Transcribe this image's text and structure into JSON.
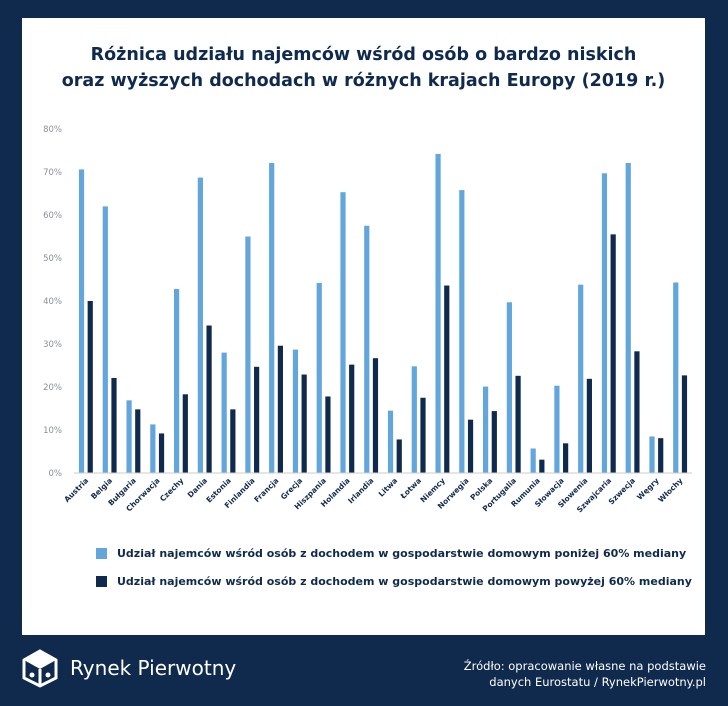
{
  "colors": {
    "background": "#0f2a4d",
    "series_light": "#62a6dc",
    "series_dark": "#0f2a4d",
    "axis_text": "#8a8f99"
  },
  "footer": {
    "brand": "Rynek Pierwotny",
    "logo_icon": "cube-logo-icon",
    "source_line1": "Źródło: opracowanie własne na podstawie",
    "source_line2": "danych Eurostatu / RynekPierwotny.pl"
  },
  "chart_data": {
    "type": "bar",
    "title": [
      "Różnica udziału najemców wśród osób o bardzo niskich",
      "oraz wyższych dochodach w różnych krajach Europy (2019 r.)"
    ],
    "xlabel": "",
    "ylabel": "",
    "ylim": [
      0,
      80
    ],
    "yticks": [
      "0%",
      "10%",
      "20%",
      "30%",
      "40%",
      "50%",
      "60%",
      "70%",
      "80%"
    ],
    "grid": false,
    "legend_position": "bottom",
    "categories": [
      "Austria",
      "Belgia",
      "Bułgaria",
      "Chorwacja",
      "Czechy",
      "Dania",
      "Estonia",
      "Finlandia",
      "Francja",
      "Grecja",
      "Hiszpania",
      "Holandia",
      "Irlandia",
      "Litwa",
      "Łotwa",
      "Niemcy",
      "Norwegia",
      "Polska",
      "Portugalia",
      "Rumunia",
      "Słowacja",
      "Słowenia",
      "Szwajcaria",
      "Szwecja",
      "Węgry",
      "Włochy"
    ],
    "series": [
      {
        "name": "Udział najemców wśród osób z dochodem w gospodarstwie domowym poniżej 60% mediany",
        "color": "#62a6dc",
        "values": [
          70.6,
          62.0,
          16.9,
          11.3,
          42.8,
          68.7,
          28.0,
          55.0,
          72.1,
          28.7,
          44.2,
          65.3,
          57.5,
          14.5,
          24.8,
          74.2,
          65.8,
          20.1,
          39.7,
          5.7,
          20.3,
          43.8,
          69.7,
          72.1,
          8.5,
          44.3
        ]
      },
      {
        "name": "Udział najemców wśród osób z dochodem w gospodarstwie domowym powyżej 60% mediany",
        "color": "#0f2a4d",
        "values": [
          40.0,
          22.1,
          14.8,
          9.2,
          18.3,
          34.3,
          14.8,
          24.7,
          29.6,
          22.9,
          17.8,
          25.2,
          26.7,
          7.8,
          17.5,
          43.6,
          12.4,
          14.4,
          22.6,
          3.1,
          6.9,
          21.9,
          55.5,
          28.3,
          8.1,
          22.7
        ]
      }
    ]
  }
}
